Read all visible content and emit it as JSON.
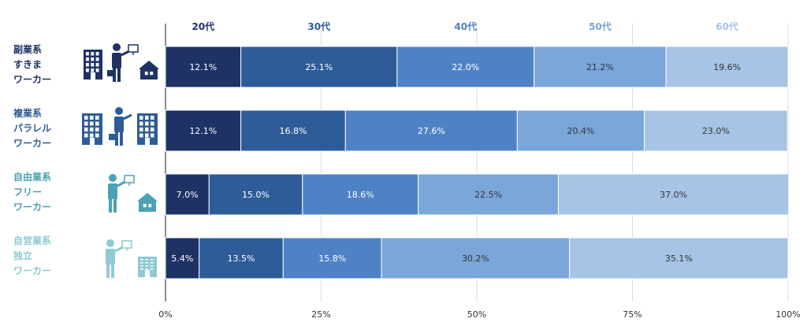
{
  "chart_data": {
    "type": "bar",
    "orientation": "horizontal-stacked-100",
    "categories": [
      [
        "副業系",
        "すきま",
        "ワーカー"
      ],
      [
        "複業系",
        "パラレル",
        "ワーカー"
      ],
      [
        "自由業系",
        "フリー",
        "ワーカー"
      ],
      [
        "自営業系",
        "独立",
        "ワーカー"
      ]
    ],
    "series": [
      {
        "name": "20代",
        "color": "#1e3264",
        "values": [
          12.1,
          12.1,
          7.0,
          5.4
        ]
      },
      {
        "name": "30代",
        "color": "#2e5c99",
        "values": [
          25.1,
          16.8,
          15.0,
          13.5
        ]
      },
      {
        "name": "40代",
        "color": "#4f82c5",
        "values": [
          22.0,
          27.6,
          18.6,
          15.8
        ]
      },
      {
        "name": "50代",
        "color": "#7ba6da",
        "values": [
          21.2,
          20.4,
          22.5,
          30.2
        ]
      },
      {
        "name": "60代",
        "color": "#a7c4e6",
        "values": [
          19.6,
          23.0,
          37.0,
          35.1
        ]
      }
    ],
    "value_labels": [
      [
        "12.1%",
        "25.1%",
        "22.0%",
        "21.2%",
        "19.6%"
      ],
      [
        "12.1%",
        "16.8%",
        "27.6%",
        "20.4%",
        "23.0%"
      ],
      [
        "7.0%",
        "15.0%",
        "18.6%",
        "22.5%",
        "37.0%"
      ],
      [
        "5.4%",
        "13.5%",
        "15.8%",
        "30.2%",
        "35.1%"
      ]
    ],
    "legend_colors": [
      "#1e3264",
      "#2e5c99",
      "#4f82c5",
      "#7ba6da",
      "#a7c4e6"
    ],
    "row_label_colors": [
      "#1e3264",
      "#2e5c99",
      "#4aa2b5",
      "#8fcad4"
    ],
    "icon_colors": [
      "#1e3264",
      "#2e5c99",
      "#4aa2b5",
      "#8fcad4"
    ],
    "xticks": [
      "0%",
      "25%",
      "50%",
      "75%",
      "100%"
    ],
    "xlim": [
      0,
      100
    ],
    "grid": true,
    "legend_position": "top",
    "icons": [
      [
        "building-icon",
        "businessman-icon",
        "house-icon"
      ],
      [
        "building-icon",
        "businessman-icon",
        "building-icon"
      ],
      [
        "person-presenting-icon",
        "house-icon"
      ],
      [
        "person-presenting-icon",
        "office-icon"
      ]
    ]
  }
}
